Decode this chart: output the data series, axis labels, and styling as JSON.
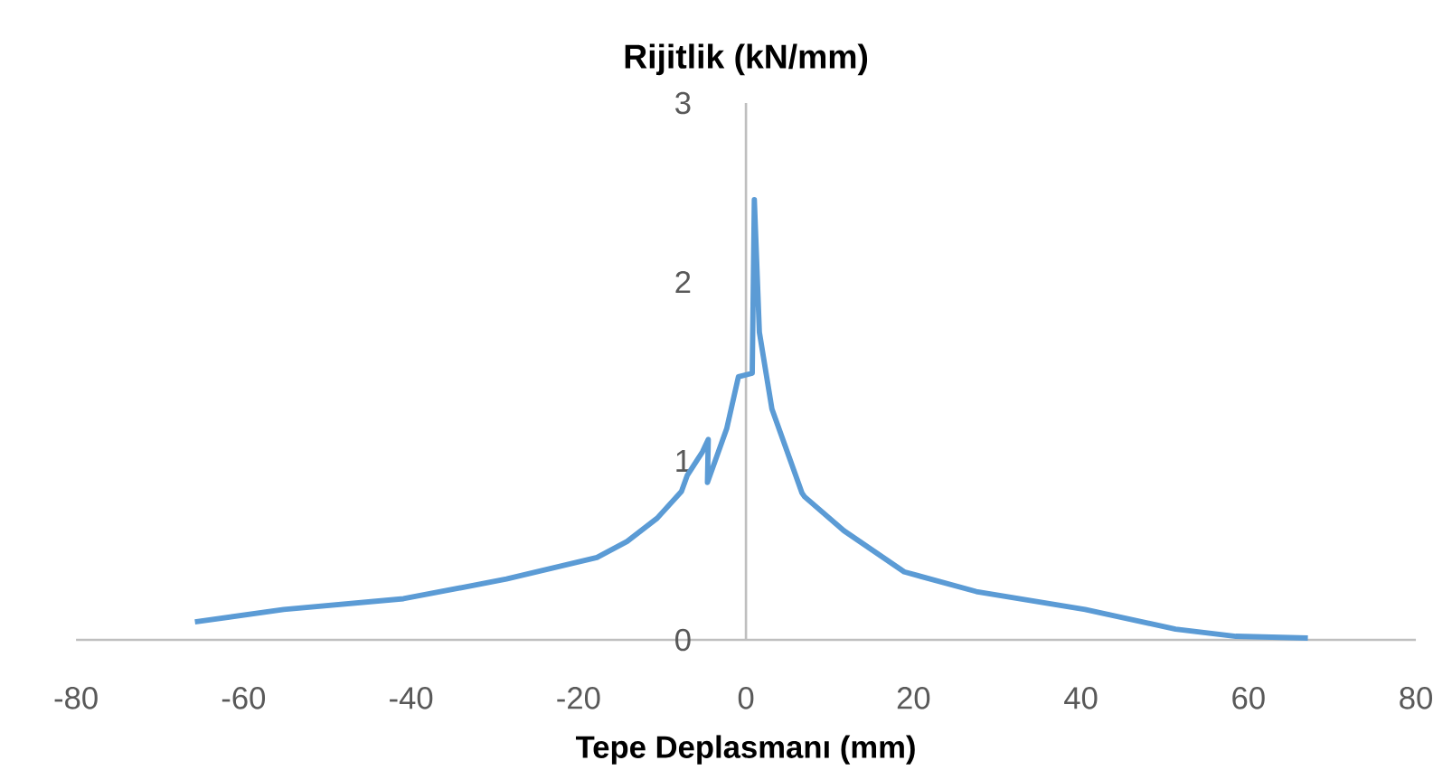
{
  "chart_data": {
    "type": "line",
    "title": "Rijitlik (kN/mm)",
    "xlabel": "Tepe Deplasmanı (mm)",
    "xlim": [
      -80,
      80
    ],
    "ylim": [
      0,
      3
    ],
    "xticks": [
      -80,
      -60,
      -40,
      -20,
      0,
      20,
      40,
      60,
      80
    ],
    "yticks": [
      0,
      1,
      2,
      3
    ],
    "series": [
      {
        "color": "#5b9bd5",
        "x": [
          -65.8,
          -55.2,
          -40.9,
          -28.6,
          -17.8,
          -14.2,
          -10.6,
          -7.7,
          -7.0,
          -5.2,
          -4.5,
          -4.6,
          -2.3,
          -0.9,
          0.75,
          1.0,
          1.6,
          3.1,
          6.7,
          7.0,
          11.7,
          18.9,
          27.5,
          40.5,
          51.3,
          58.5,
          67.1
        ],
        "values": [
          0.1,
          0.17,
          0.23,
          0.34,
          0.46,
          0.55,
          0.68,
          0.83,
          0.92,
          1.05,
          1.12,
          0.88,
          1.18,
          1.47,
          1.49,
          2.46,
          1.72,
          1.29,
          0.82,
          0.8,
          0.61,
          0.38,
          0.27,
          0.17,
          0.06,
          0.02,
          0.01
        ]
      }
    ]
  }
}
